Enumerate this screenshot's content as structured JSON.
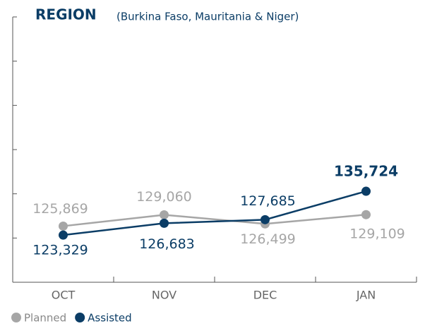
{
  "chart_data": {
    "type": "line",
    "title": "REGION",
    "subtitle": "(Burkina Faso, Mauritania & Niger)",
    "categories": [
      "OCT",
      "NOV",
      "DEC",
      "JAN"
    ],
    "series": [
      {
        "name": "Planned",
        "color": "#a6a6a6",
        "values": [
          125869,
          129060,
          126499,
          129109
        ],
        "value_labels": [
          "125,869",
          "129,060",
          "126,499",
          "129,109"
        ]
      },
      {
        "name": "Assisted",
        "color": "#0b3d66",
        "values": [
          123329,
          126683,
          127685,
          135724
        ],
        "value_labels": [
          "123,329",
          "126,683",
          "127,685",
          "135,724"
        ]
      }
    ],
    "ylim": [
      110000,
      185000
    ],
    "yticks": [
      122500,
      135000,
      147500,
      160000,
      172500,
      185000
    ]
  }
}
